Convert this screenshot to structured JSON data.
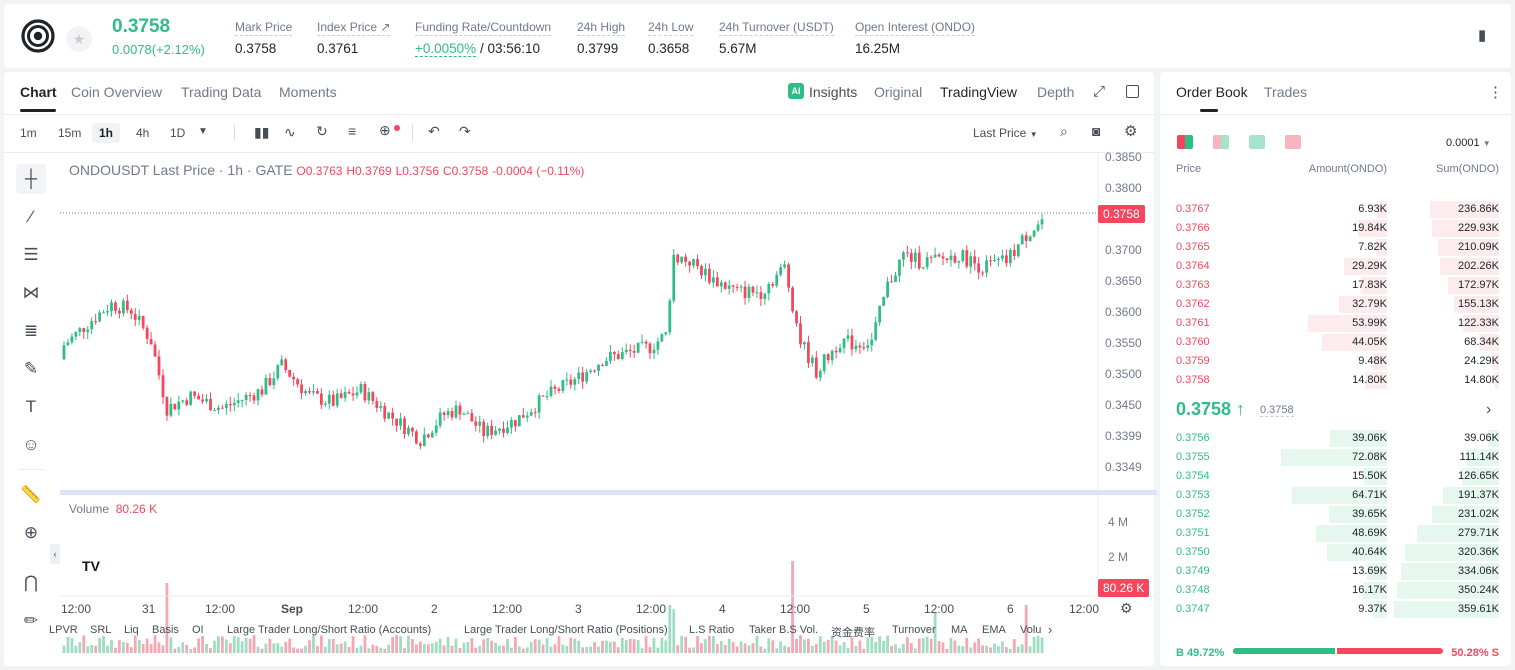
{
  "header": {
    "last_price": "0.3758",
    "change": "0.0078(+2.12%)",
    "stats": [
      {
        "label": "Mark Price",
        "value": "0.3758"
      },
      {
        "label": "Index Price ↗",
        "value": "0.3761"
      },
      {
        "label": "Funding Rate/Countdown",
        "value": "+0.0050%",
        "extra": " / 03:56:10"
      },
      {
        "label": "24h High",
        "value": "0.3799"
      },
      {
        "label": "24h Low",
        "value": "0.3658"
      },
      {
        "label": "24h Turnover (USDT)",
        "value": "5.67M"
      },
      {
        "label": "Open Interest (ONDO)",
        "value": "16.25M"
      }
    ]
  },
  "chart_tabs": [
    "Chart",
    "Coin Overview",
    "Trading Data",
    "Moments"
  ],
  "view_tabs": [
    "Insights",
    "Original",
    "TradingView",
    "Depth"
  ],
  "intervals": [
    "1m",
    "15m",
    "1h",
    "4h",
    "1D"
  ],
  "last_price_select": "Last Price",
  "ohlc": {
    "title": "ONDOUSDT Last Price · 1h · GATE",
    "o": "O0.3763",
    "h": "H0.3769",
    "l": "L0.3756",
    "c": "C0.3758",
    "chg": "-0.0004 (−0.11%)"
  },
  "y_axis": [
    "0.3850",
    "0.3800",
    "0.3750",
    "0.3700",
    "0.3650",
    "0.3600",
    "0.3550",
    "0.3500",
    "0.3450",
    "0.3399",
    "0.3349"
  ],
  "current_price_tag": "0.3758",
  "volume": {
    "label": "Volume",
    "value": "80.26 K",
    "axis": [
      "4 M",
      "2 M"
    ],
    "tag": "80.26 K"
  },
  "x_axis": [
    "12:00",
    "31",
    "12:00",
    "Sep",
    "12:00",
    "2",
    "12:00",
    "3",
    "12:00",
    "4",
    "12:00",
    "5",
    "12:00",
    "6",
    "12:00"
  ],
  "bottom_tabs": [
    "LPVR",
    "SRL",
    "Liq",
    "Basis",
    "OI",
    "Large Trader Long/Short Ratio (Accounts)",
    "Large Trader Long/Short Ratio (Positions)",
    "L.S Ratio",
    "Taker B.S Vol.",
    "资金费率",
    "Turnover",
    "MA",
    "EMA",
    "Volu"
  ],
  "orderbook": {
    "tabs": [
      "Order Book",
      "Trades"
    ],
    "precision": "0.0001",
    "headers": [
      "Price",
      "Amount(ONDO)",
      "Sum(ONDO)"
    ],
    "asks": [
      {
        "p": "0.3767",
        "a": "6.93K",
        "s": "236.86K"
      },
      {
        "p": "0.3766",
        "a": "19.84K",
        "s": "229.93K"
      },
      {
        "p": "0.3765",
        "a": "7.82K",
        "s": "210.09K"
      },
      {
        "p": "0.3764",
        "a": "29.29K",
        "s": "202.26K"
      },
      {
        "p": "0.3763",
        "a": "17.83K",
        "s": "172.97K"
      },
      {
        "p": "0.3762",
        "a": "32.79K",
        "s": "155.13K"
      },
      {
        "p": "0.3761",
        "a": "53.99K",
        "s": "122.33K"
      },
      {
        "p": "0.3760",
        "a": "44.05K",
        "s": "68.34K"
      },
      {
        "p": "0.3759",
        "a": "9.48K",
        "s": "24.29K"
      },
      {
        "p": "0.3758",
        "a": "14.80K",
        "s": "14.80K"
      }
    ],
    "mid_price": "0.3758 ↑",
    "mark": "0.3758",
    "bids": [
      {
        "p": "0.3756",
        "a": "39.06K",
        "s": "39.06K"
      },
      {
        "p": "0.3755",
        "a": "72.08K",
        "s": "111.14K"
      },
      {
        "p": "0.3754",
        "a": "15.50K",
        "s": "126.65K"
      },
      {
        "p": "0.3753",
        "a": "64.71K",
        "s": "191.37K"
      },
      {
        "p": "0.3752",
        "a": "39.65K",
        "s": "231.02K"
      },
      {
        "p": "0.3751",
        "a": "48.69K",
        "s": "279.71K"
      },
      {
        "p": "0.3750",
        "a": "40.64K",
        "s": "320.36K"
      },
      {
        "p": "0.3749",
        "a": "13.69K",
        "s": "334.06K"
      },
      {
        "p": "0.3748",
        "a": "16.17K",
        "s": "350.24K"
      },
      {
        "p": "0.3747",
        "a": "9.37K",
        "s": "359.61K"
      }
    ],
    "buy": "B 49.72%",
    "sell": "50.28% S",
    "buy_ratio": 0.4972
  }
}
